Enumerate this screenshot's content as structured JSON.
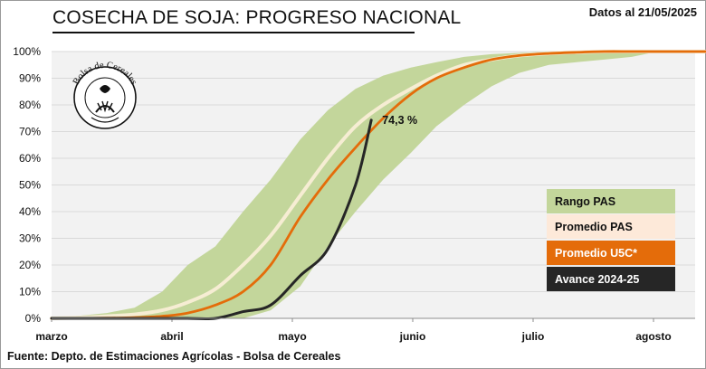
{
  "header": {
    "title": "COSECHA DE SOJA: PROGRESO NACIONAL",
    "date": "Datos al 21/05/2025"
  },
  "footer": {
    "source": "Fuente: Depto. de Estimaciones Agrícolas - Bolsa de Cereales"
  },
  "logo": {
    "text": "Bolsa de Cereales"
  },
  "chart_data": {
    "type": "area",
    "title": "COSECHA DE SOJA: PROGRESO NACIONAL",
    "x_ticks": [
      "marzo",
      "abril",
      "mayo",
      "junio",
      "julio",
      "agosto"
    ],
    "y_ticks": [
      "0%",
      "10%",
      "20%",
      "30%",
      "40%",
      "50%",
      "60%",
      "70%",
      "80%",
      "90%",
      "100%"
    ],
    "ylim": [
      0,
      100
    ],
    "grid": true,
    "legend_position": "right",
    "x": [
      "01-Mar",
      "08-Mar",
      "15-Mar",
      "22-Mar",
      "29-Mar",
      "05-Abr",
      "12-Abr",
      "19-Abr",
      "26-Abr",
      "03-May",
      "10-May",
      "17-May",
      "24-May",
      "31-May",
      "07-Jun",
      "14-Jun",
      "21-Jun",
      "28-Jun",
      "05-Jul",
      "12-Jul",
      "19-Jul",
      "26-Jul",
      "02-Ago",
      "09-Ago",
      "16-Ago",
      "23-Ago"
    ],
    "series": [
      {
        "name": "Rango PAS",
        "kind": "band",
        "color": "#c3d69b",
        "upper": [
          0,
          1,
          2,
          4,
          10,
          20,
          27,
          40,
          52,
          67,
          78,
          86,
          91,
          94,
          96,
          98,
          99,
          99.5,
          100,
          100,
          100,
          100,
          100,
          100,
          100,
          100
        ],
        "lower": [
          0,
          0,
          0,
          0,
          0,
          0,
          0,
          0,
          3,
          12,
          27,
          40,
          52,
          62,
          72,
          80,
          87,
          92,
          95,
          96,
          97,
          98,
          100,
          100,
          100,
          100
        ]
      },
      {
        "name": "Promedio PAS",
        "color": "#f6edd3",
        "values": [
          0,
          0.3,
          0.8,
          1.5,
          3,
          6,
          11,
          20,
          31,
          46,
          60,
          72,
          80,
          86,
          91,
          95,
          97,
          98.5,
          99.3,
          99.7,
          100,
          100,
          100,
          100,
          100,
          100
        ]
      },
      {
        "name": "Promedio  U5C*",
        "color": "#e46c0a",
        "values": [
          0,
          0,
          0.1,
          0.3,
          0.8,
          2,
          5,
          10,
          20,
          38,
          52,
          64,
          75,
          84,
          90,
          94,
          97,
          98.5,
          99.3,
          99.7,
          100,
          100,
          100,
          100,
          100,
          100
        ]
      },
      {
        "name": "Avance 2024-25",
        "color": "#262626",
        "x": [
          "01-Mar",
          "08-Mar",
          "15-Mar",
          "22-Mar",
          "29-Mar",
          "05-Abr",
          "12-Abr",
          "19-Abr",
          "26-Abr",
          "03-May",
          "10-May",
          "17-May",
          "21-May"
        ],
        "values": [
          0,
          0,
          0,
          0,
          0,
          0,
          0,
          2.5,
          5,
          16,
          26,
          50,
          74.3
        ]
      }
    ],
    "annotations": [
      {
        "text": "74,3 %",
        "x": "21-May",
        "y": 74.3
      }
    ]
  }
}
